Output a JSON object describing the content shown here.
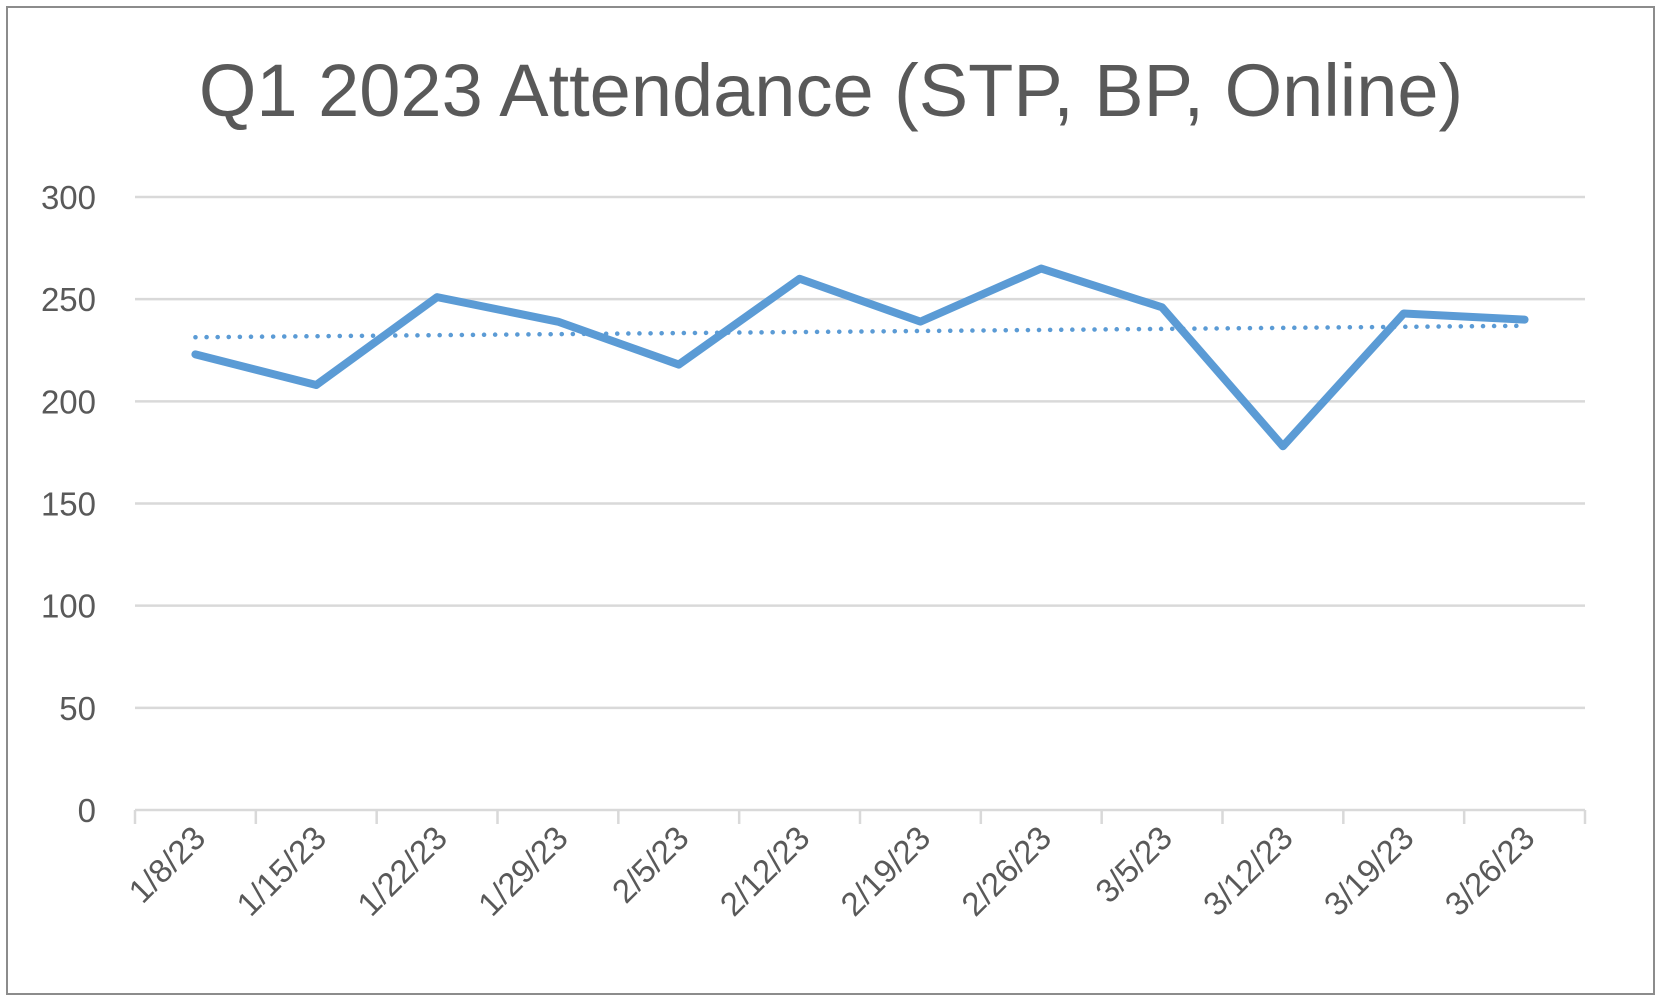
{
  "chart_data": {
    "type": "line",
    "title": "Q1 2023 Attendance (STP, BP, Online)",
    "xlabel": "",
    "ylabel": "",
    "categories": [
      "1/8/23",
      "1/15/23",
      "1/22/23",
      "1/29/23",
      "2/5/23",
      "2/12/23",
      "2/19/23",
      "2/26/23",
      "3/5/23",
      "3/12/23",
      "3/19/23",
      "3/26/23"
    ],
    "series": [
      {
        "values": [
          223,
          208,
          251,
          239,
          218,
          260,
          239,
          265,
          246,
          178,
          243,
          240
        ],
        "color": "#5b9bd5",
        "style": "solid"
      }
    ],
    "trendline": {
      "type": "linear",
      "style": "dotted",
      "color": "#5b9bd5"
    },
    "ylim": [
      0,
      300
    ],
    "yticks": [
      0,
      50,
      100,
      150,
      200,
      250,
      300
    ],
    "grid": true,
    "legend": "none"
  }
}
